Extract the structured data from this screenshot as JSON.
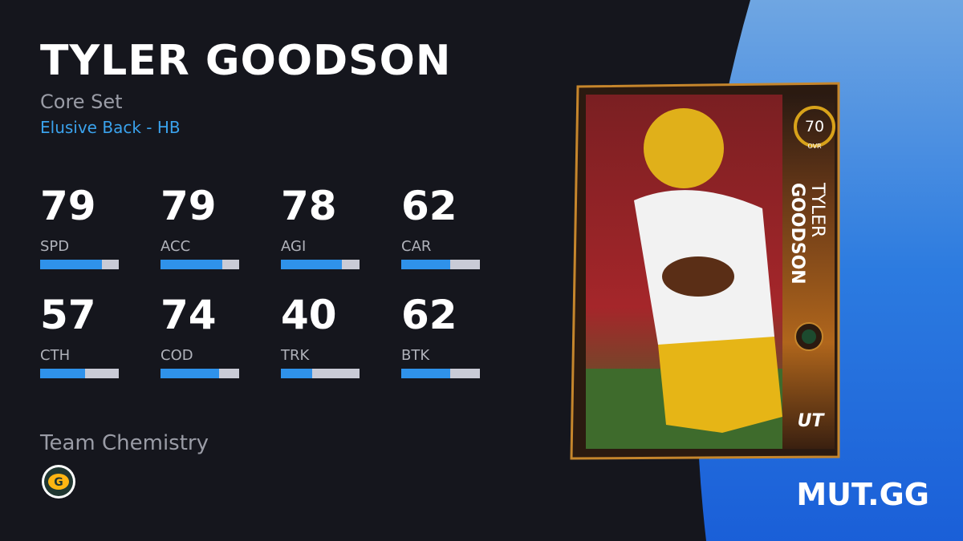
{
  "header": {
    "name": "TYLER GOODSON",
    "set": "Core Set",
    "archetype": "Elusive Back - HB"
  },
  "stats": [
    {
      "value": 79,
      "label": "SPD"
    },
    {
      "value": 79,
      "label": "ACC"
    },
    {
      "value": 78,
      "label": "AGI"
    },
    {
      "value": 62,
      "label": "CAR"
    },
    {
      "value": 57,
      "label": "CTH"
    },
    {
      "value": 74,
      "label": "COD"
    },
    {
      "value": 40,
      "label": "TRK"
    },
    {
      "value": 62,
      "label": "BTK"
    }
  ],
  "stat_scale_max": 100,
  "chemistry": {
    "label": "Team Chemistry"
  },
  "card": {
    "ovr": 70,
    "ovr_label": "OVR",
    "first_name": "TYLER",
    "last_name": "GOODSON",
    "program": "UT"
  },
  "brand": "MUT.GG"
}
